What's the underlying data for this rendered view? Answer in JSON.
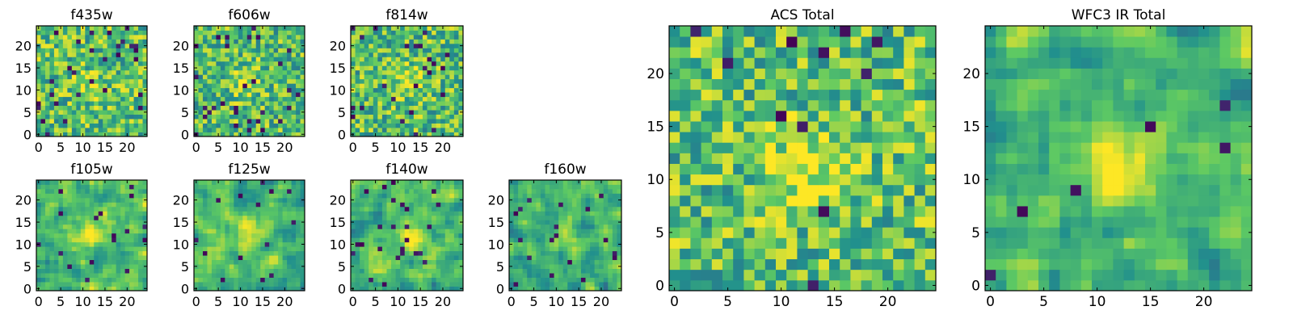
{
  "figure": {
    "description_title": ""
  },
  "colormap": [
    "#440154",
    "#3b528b",
    "#21908d",
    "#5dc963",
    "#fde725"
  ],
  "chart_data": [
    {
      "type": "heatmap",
      "title": "f435w",
      "x_ticks": [
        0,
        5,
        10,
        15,
        20
      ],
      "y_ticks": [
        0,
        5,
        10,
        15,
        20
      ],
      "grid_size": 25,
      "xlim": [
        0,
        24
      ],
      "ylim": [
        0,
        24
      ],
      "seed": 11,
      "smooth": 0,
      "center": [
        12,
        11
      ],
      "center_boost": 0.15,
      "dark_frac": 0.05,
      "mean": 0.68
    },
    {
      "type": "heatmap",
      "title": "f606w",
      "x_ticks": [
        0,
        5,
        10,
        15,
        20
      ],
      "y_ticks": [
        0,
        5,
        10,
        15,
        20
      ],
      "grid_size": 25,
      "xlim": [
        0,
        24
      ],
      "ylim": [
        0,
        24
      ],
      "seed": 23,
      "smooth": 0,
      "center": [
        11,
        12
      ],
      "center_boost": 0.25,
      "dark_frac": 0.04,
      "mean": 0.66
    },
    {
      "type": "heatmap",
      "title": "f814w",
      "x_ticks": [
        0,
        5,
        10,
        15,
        20
      ],
      "y_ticks": [
        0,
        5,
        10,
        15,
        20
      ],
      "grid_size": 25,
      "xlim": [
        0,
        24
      ],
      "ylim": [
        0,
        24
      ],
      "seed": 37,
      "smooth": 0,
      "center": [
        13,
        12
      ],
      "center_boost": 0.25,
      "dark_frac": 0.04,
      "mean": 0.67
    },
    {
      "type": "heatmap",
      "title": "f105w",
      "x_ticks": [
        0,
        5,
        10,
        15,
        20
      ],
      "y_ticks": [
        0,
        5,
        10,
        15,
        20
      ],
      "grid_size": 25,
      "xlim": [
        0,
        24
      ],
      "ylim": [
        0,
        24
      ],
      "seed": 41,
      "smooth": 1,
      "center": [
        12,
        13
      ],
      "center_boost": 0.35,
      "dark_frac": 0.02,
      "mean": 0.68
    },
    {
      "type": "heatmap",
      "title": "f125w",
      "x_ticks": [
        0,
        5,
        10,
        15,
        20
      ],
      "y_ticks": [
        0,
        5,
        10,
        15,
        20
      ],
      "grid_size": 25,
      "xlim": [
        0,
        24
      ],
      "ylim": [
        0,
        24
      ],
      "seed": 53,
      "smooth": 1,
      "center": [
        12,
        12
      ],
      "center_boost": 0.25,
      "dark_frac": 0.03,
      "mean": 0.63
    },
    {
      "type": "heatmap",
      "title": "f140w",
      "x_ticks": [
        0,
        5,
        10,
        15,
        20
      ],
      "y_ticks": [
        0,
        5,
        10,
        15,
        20
      ],
      "grid_size": 25,
      "xlim": [
        0,
        24
      ],
      "ylim": [
        0,
        24
      ],
      "seed": 67,
      "smooth": 1,
      "center": [
        13,
        12
      ],
      "center_boost": 0.25,
      "dark_frac": 0.03,
      "mean": 0.64
    },
    {
      "type": "heatmap",
      "title": "f160w",
      "x_ticks": [
        0,
        5,
        10,
        15,
        20
      ],
      "y_ticks": [
        0,
        5,
        10,
        15,
        20
      ],
      "grid_size": 25,
      "xlim": [
        0,
        24
      ],
      "ylim": [
        0,
        24
      ],
      "seed": 79,
      "smooth": 1,
      "center": [
        12,
        12
      ],
      "center_boost": 0.2,
      "dark_frac": 0.04,
      "mean": 0.6
    },
    {
      "type": "heatmap",
      "title": "ACS Total",
      "x_ticks": [
        0,
        5,
        10,
        15,
        20
      ],
      "y_ticks": [
        0,
        5,
        10,
        15,
        20
      ],
      "grid_size": 25,
      "xlim": [
        0,
        24
      ],
      "ylim": [
        0,
        24
      ],
      "seed": 97,
      "smooth": 0,
      "center": [
        12,
        11
      ],
      "center_boost": 0.3,
      "dark_frac": 0.02,
      "mean": 0.68
    },
    {
      "type": "heatmap",
      "title": "WFC3 IR Total",
      "x_ticks": [
        0,
        5,
        10,
        15,
        20
      ],
      "y_ticks": [
        0,
        5,
        10,
        15,
        20
      ],
      "grid_size": 25,
      "xlim": [
        0,
        24
      ],
      "ylim": [
        0,
        24
      ],
      "seed": 113,
      "smooth": 1,
      "center": [
        12,
        11
      ],
      "center_boost": 0.35,
      "dark_frac": 0.015,
      "mean": 0.66
    }
  ]
}
